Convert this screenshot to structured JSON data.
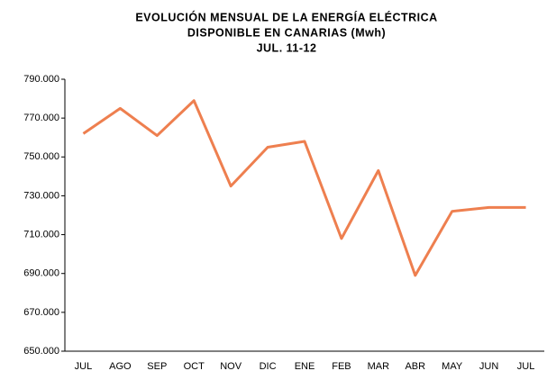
{
  "chart_data": {
    "type": "line",
    "title": [
      "EVOLUCIÓN MENSUAL DE LA ENERGÍA ELÉCTRICA",
      "DISPONIBLE EN CANARIAS (Mwh)",
      "JUL. 11-12"
    ],
    "categories": [
      "JUL",
      "AGO",
      "SEP",
      "OCT",
      "NOV",
      "DIC",
      "ENE",
      "FEB",
      "MAR",
      "ABR",
      "MAY",
      "JUN",
      "JUL"
    ],
    "series": [
      {
        "color": "#ee7f4f",
        "values": [
          762000,
          775000,
          761000,
          779000,
          735000,
          755000,
          758000,
          708000,
          743000,
          689000,
          722000,
          724000,
          724000
        ]
      }
    ],
    "ylim": [
      650000,
      790000
    ],
    "yticks": [
      {
        "value": 650000,
        "label": "650.000"
      },
      {
        "value": 670000,
        "label": "670.000"
      },
      {
        "value": 690000,
        "label": "690.000"
      },
      {
        "value": 710000,
        "label": "710.000"
      },
      {
        "value": 730000,
        "label": "730.000"
      },
      {
        "value": 750000,
        "label": "750.000"
      },
      {
        "value": 770000,
        "label": "770.000"
      },
      {
        "value": 790000,
        "label": "790.000"
      }
    ],
    "grid": false
  }
}
